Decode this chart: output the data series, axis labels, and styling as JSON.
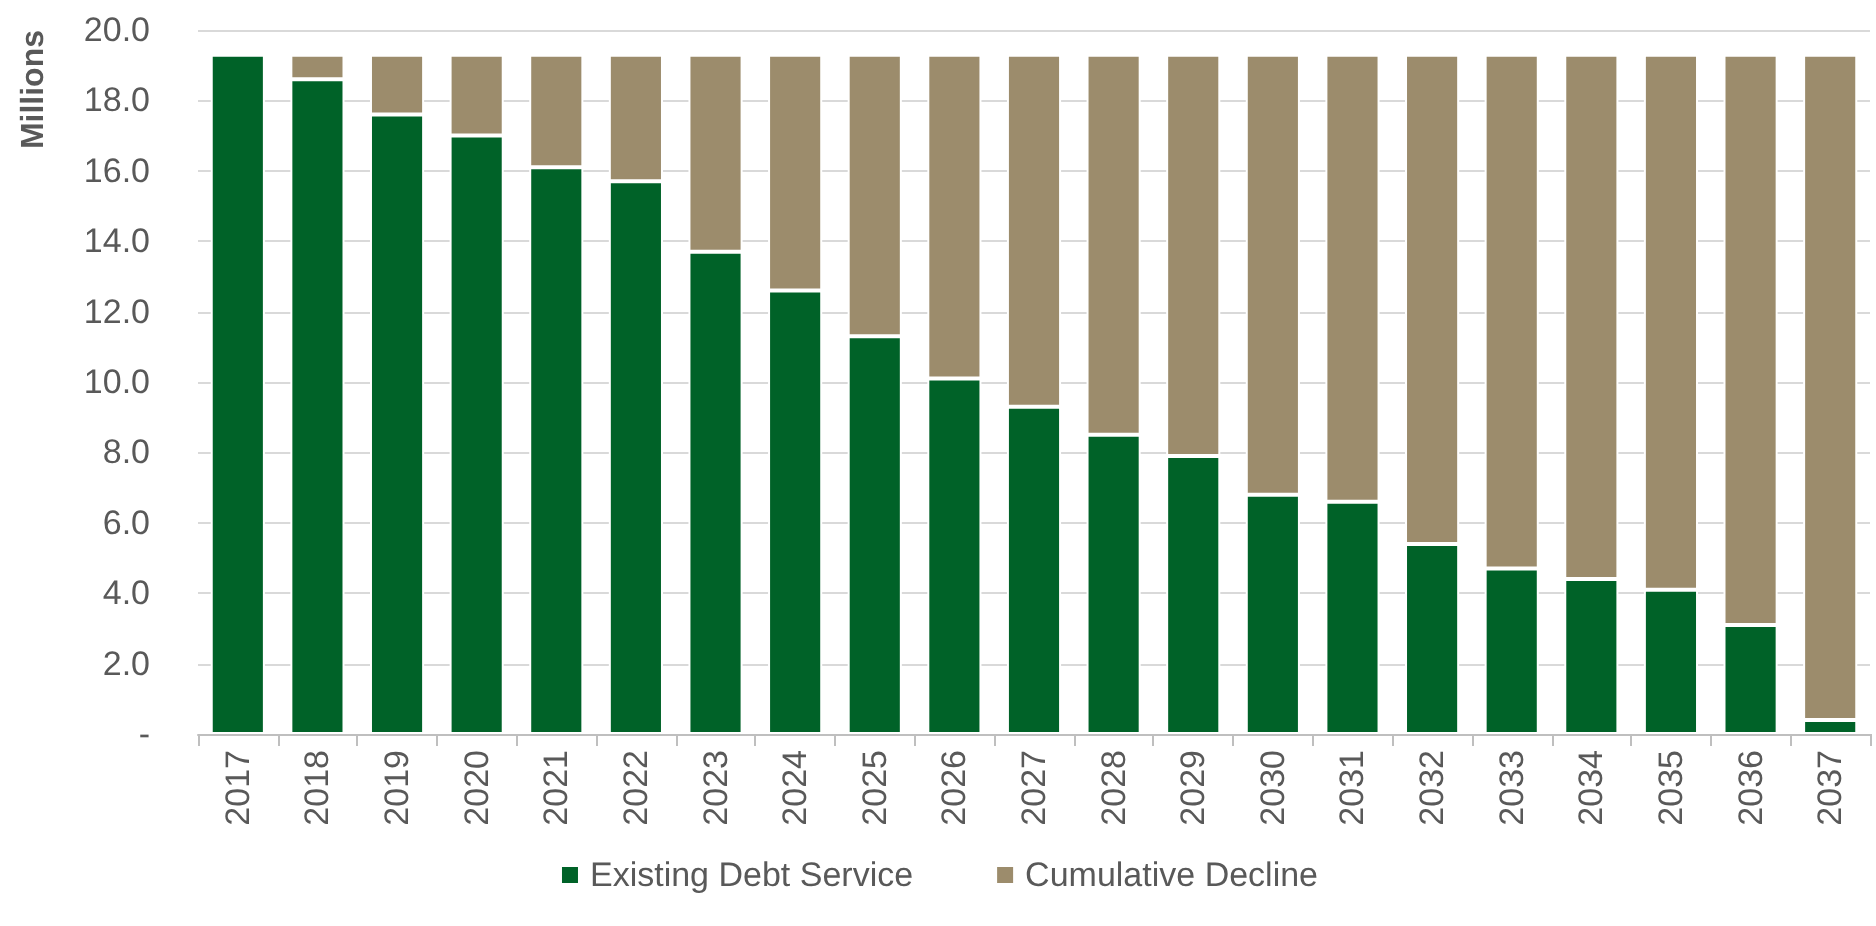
{
  "chart_data": {
    "type": "bar",
    "stacked": true,
    "ylabel": "Millions",
    "categories": [
      "2017",
      "2018",
      "2019",
      "2020",
      "2021",
      "2022",
      "2023",
      "2024",
      "2025",
      "2026",
      "2027",
      "2028",
      "2029",
      "2030",
      "2031",
      "2032",
      "2033",
      "2034",
      "2035",
      "2036",
      "2037"
    ],
    "series": [
      {
        "name": "Existing Debt Service",
        "color": "#006228",
        "values": [
          19.3,
          18.6,
          17.6,
          17.0,
          16.1,
          15.7,
          13.7,
          12.6,
          11.3,
          10.1,
          9.3,
          8.5,
          7.9,
          6.8,
          6.6,
          5.4,
          4.7,
          4.4,
          4.1,
          3.1,
          0.4
        ]
      },
      {
        "name": "Cumulative Decline",
        "color": "#9c8c6c",
        "values": [
          0,
          0.7,
          1.7,
          2.3,
          3.2,
          3.6,
          5.6,
          6.7,
          8.0,
          9.2,
          10.0,
          10.8,
          11.4,
          12.5,
          12.7,
          13.9,
          14.6,
          14.9,
          15.2,
          16.2,
          18.9
        ]
      }
    ],
    "ylim": [
      0,
      20
    ],
    "yticks": [
      {
        "value": 0,
        "label": "-"
      },
      {
        "value": 2,
        "label": "2.0"
      },
      {
        "value": 4,
        "label": "4.0"
      },
      {
        "value": 6,
        "label": "6.0"
      },
      {
        "value": 8,
        "label": "8.0"
      },
      {
        "value": 10,
        "label": "10.0"
      },
      {
        "value": 12,
        "label": "12.0"
      },
      {
        "value": 14,
        "label": "14.0"
      },
      {
        "value": 16,
        "label": "16.0"
      },
      {
        "value": 18,
        "label": "18.0"
      },
      {
        "value": 20,
        "label": "20.0"
      }
    ],
    "grid": "y",
    "legend": "bottom"
  }
}
